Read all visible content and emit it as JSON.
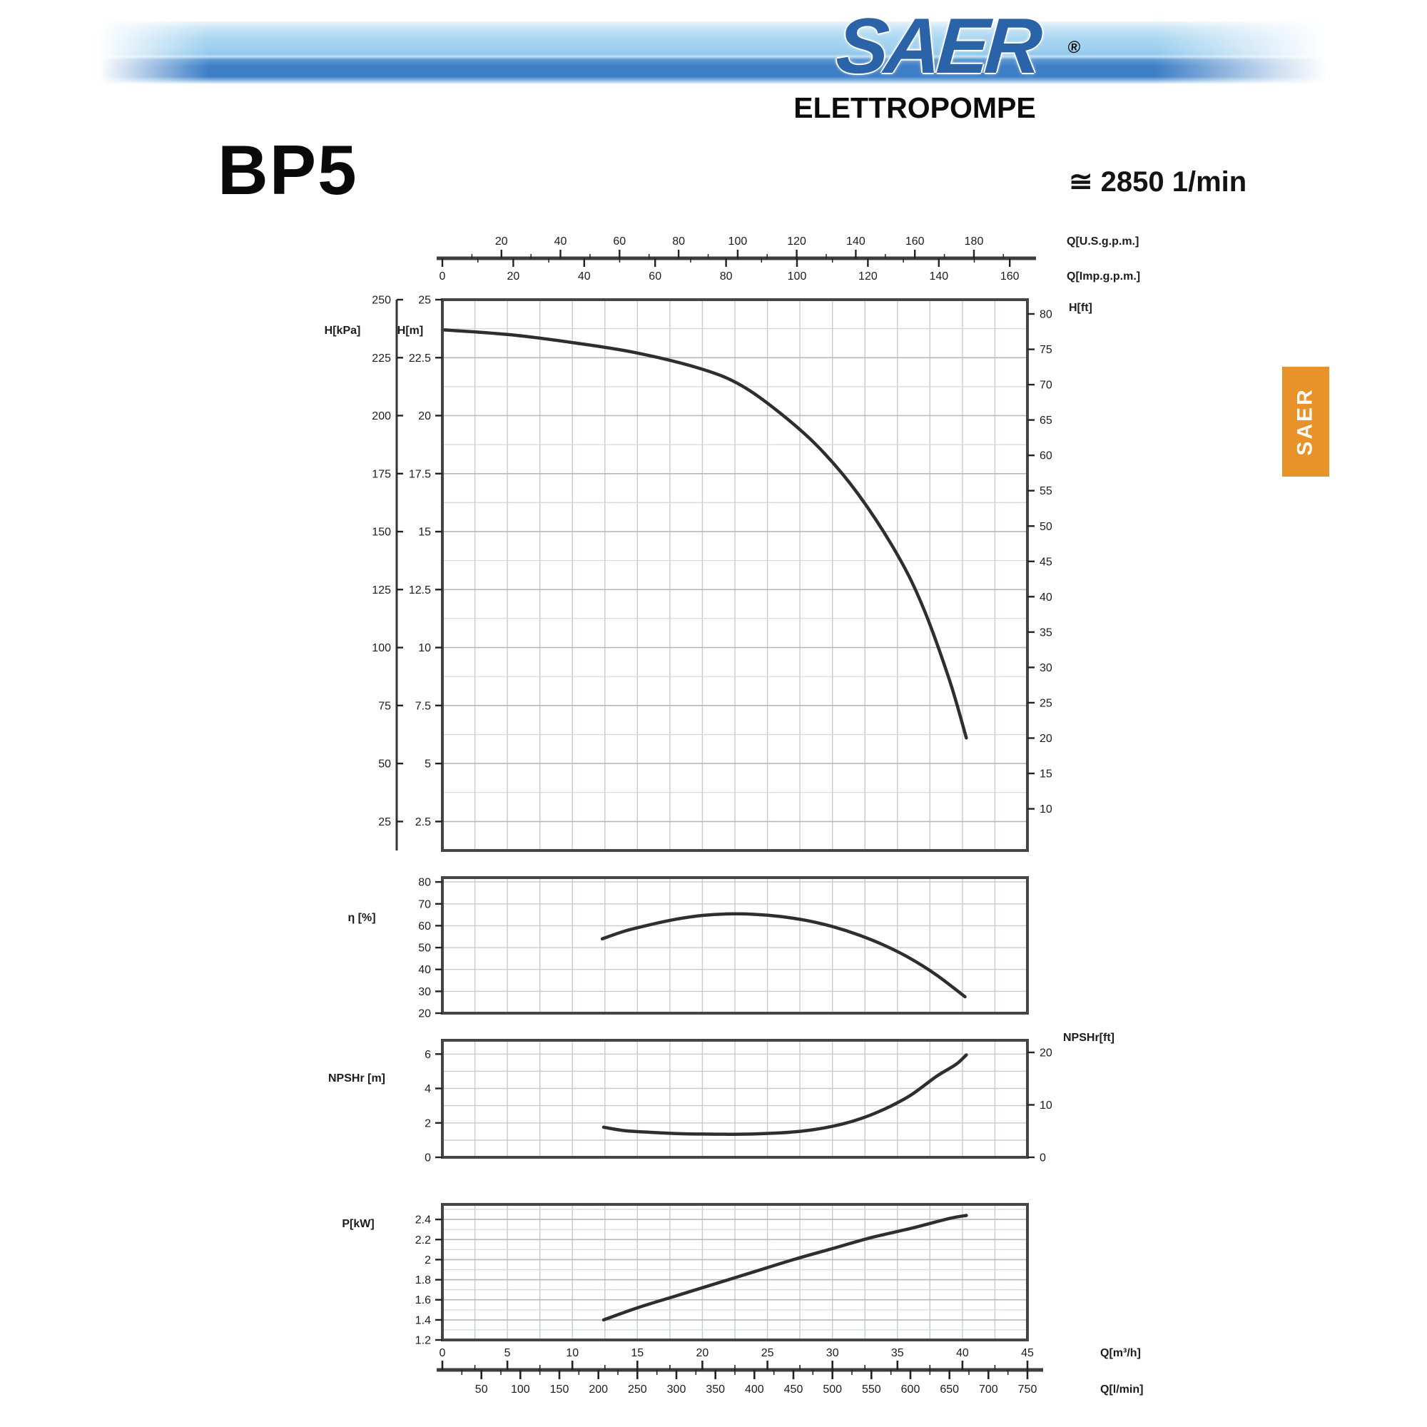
{
  "header": {
    "logo_text": "SAER",
    "logo_registered": "®",
    "logo_subtitle": "ELETTROPOMPE",
    "side_badge": "SAER"
  },
  "colors": {
    "accent_orange": "#E8922A",
    "logo_blue": "#2B63A9",
    "banner_blue_light": "#A9D6F1",
    "banner_blue_dark": "#3E7EC6",
    "curve_stroke": "#2e2e2e",
    "frame_stroke": "#454545"
  },
  "title": {
    "model": "BP5",
    "speed": "≅ 2850 1/min"
  },
  "chart_data": [
    {
      "id": "head-flow",
      "type": "line",
      "title": "",
      "xlabel": "Q[m³/h]",
      "xlim": [
        0,
        45
      ],
      "ylim": [
        1.25,
        25
      ],
      "left_axis_kpa": {
        "label": "H[kPa]",
        "ticks": [
          "250",
          "225",
          "200",
          "175",
          "150",
          "125",
          "100",
          "75",
          "50",
          "25"
        ],
        "kpa_per_m": 10
      },
      "left_axis_m": {
        "label": "H[m]",
        "ticks": [
          "25",
          "22.5",
          "20",
          "17.5",
          "15",
          "12.5",
          "10",
          "7.5",
          "5",
          "2.5"
        ]
      },
      "right_axis_ft": {
        "label": "H[ft]",
        "ticks": [
          "80",
          "75",
          "70",
          "65",
          "60",
          "55",
          "50",
          "45",
          "40",
          "35",
          "30",
          "25",
          "20",
          "15",
          "10"
        ],
        "m_per_ft": 0.3048
      },
      "top_axis_us_gpm": {
        "label": "Q[U.S.g.p.m.]",
        "ticks": [
          "20",
          "40",
          "60",
          "80",
          "100",
          "120",
          "140",
          "160",
          "180"
        ],
        "m3h_per_unit": 0.22712
      },
      "top_axis_imp_gpm": {
        "label": "Q[Imp.g.p.m.]",
        "ticks": [
          "0",
          "20",
          "40",
          "60",
          "80",
          "100",
          "120",
          "140",
          "160"
        ],
        "m3h_per_unit": 0.27276
      },
      "grid": "on",
      "series": [
        {
          "name": "head-curve",
          "x": [
            0,
            5,
            10,
            15,
            20,
            23,
            26,
            29,
            32,
            35,
            37,
            39,
            40.3
          ],
          "y": [
            23.7,
            23.5,
            23.15,
            22.7,
            22.0,
            21.3,
            20.1,
            18.6,
            16.6,
            14.0,
            11.7,
            8.6,
            6.1
          ]
        }
      ]
    },
    {
      "id": "efficiency",
      "type": "line",
      "ylabel": "η [%]",
      "xlim": [
        0,
        45
      ],
      "ylim": [
        20,
        82
      ],
      "yticks": [
        "80",
        "70",
        "60",
        "50",
        "40",
        "30",
        "20"
      ],
      "grid_step": 10,
      "series": [
        {
          "name": "efficiency-curve",
          "x": [
            12.3,
            14,
            16,
            18,
            20,
            22,
            24,
            26,
            28,
            30,
            32,
            34,
            36,
            38,
            40.2
          ],
          "y": [
            54,
            57.5,
            60.5,
            63,
            64.7,
            65.4,
            65.2,
            64.2,
            62.4,
            59.6,
            55.8,
            51,
            45,
            37.5,
            27.5
          ]
        }
      ]
    },
    {
      "id": "npsh",
      "type": "line",
      "ylabel": "NPSHr [m]",
      "ylabel_right": "NPSHr[ft]",
      "xlim": [
        0,
        45
      ],
      "ylim": [
        0,
        6.8
      ],
      "yticks": [
        "6",
        "4",
        "2",
        "0"
      ],
      "yticks_right_ft": [
        "20",
        "10",
        "0"
      ],
      "m_per_ft": 0.3048,
      "grid_step": 1,
      "series": [
        {
          "name": "npsh-curve",
          "x": [
            12.4,
            14,
            16,
            18,
            20,
            22,
            24,
            26,
            28,
            30,
            32,
            34,
            36,
            38,
            39.5,
            40.3
          ],
          "y": [
            1.75,
            1.55,
            1.45,
            1.38,
            1.35,
            1.34,
            1.36,
            1.42,
            1.55,
            1.8,
            2.2,
            2.8,
            3.6,
            4.7,
            5.4,
            5.95
          ]
        }
      ]
    },
    {
      "id": "power",
      "type": "line",
      "ylabel": "P[kW]",
      "xlim": [
        0,
        45
      ],
      "ylim": [
        1.2,
        2.55
      ],
      "yticks": [
        "2.4",
        "2.2",
        "2",
        "1.8",
        "1.6",
        "1.4",
        "1.2"
      ],
      "grid_step": 0.2,
      "grid_minor_step": 0.1,
      "series": [
        {
          "name": "power-curve",
          "x": [
            12.4,
            15,
            18,
            21,
            24,
            27,
            30,
            33,
            36,
            39,
            40.3
          ],
          "y": [
            1.4,
            1.52,
            1.64,
            1.76,
            1.88,
            2.0,
            2.11,
            2.22,
            2.31,
            2.41,
            2.44
          ]
        }
      ]
    }
  ],
  "bottom_axis": {
    "m3h": {
      "label": "Q[m³/h]",
      "ticks": [
        "0",
        "5",
        "10",
        "15",
        "20",
        "25",
        "30",
        "35",
        "40",
        "45"
      ]
    },
    "lmin": {
      "label": "Q[l/min]",
      "ticks": [
        "50",
        "100",
        "150",
        "200",
        "250",
        "300",
        "350",
        "400",
        "450",
        "500",
        "550",
        "600",
        "650",
        "700",
        "750"
      ],
      "m3h_per_unit": 0.06
    }
  }
}
